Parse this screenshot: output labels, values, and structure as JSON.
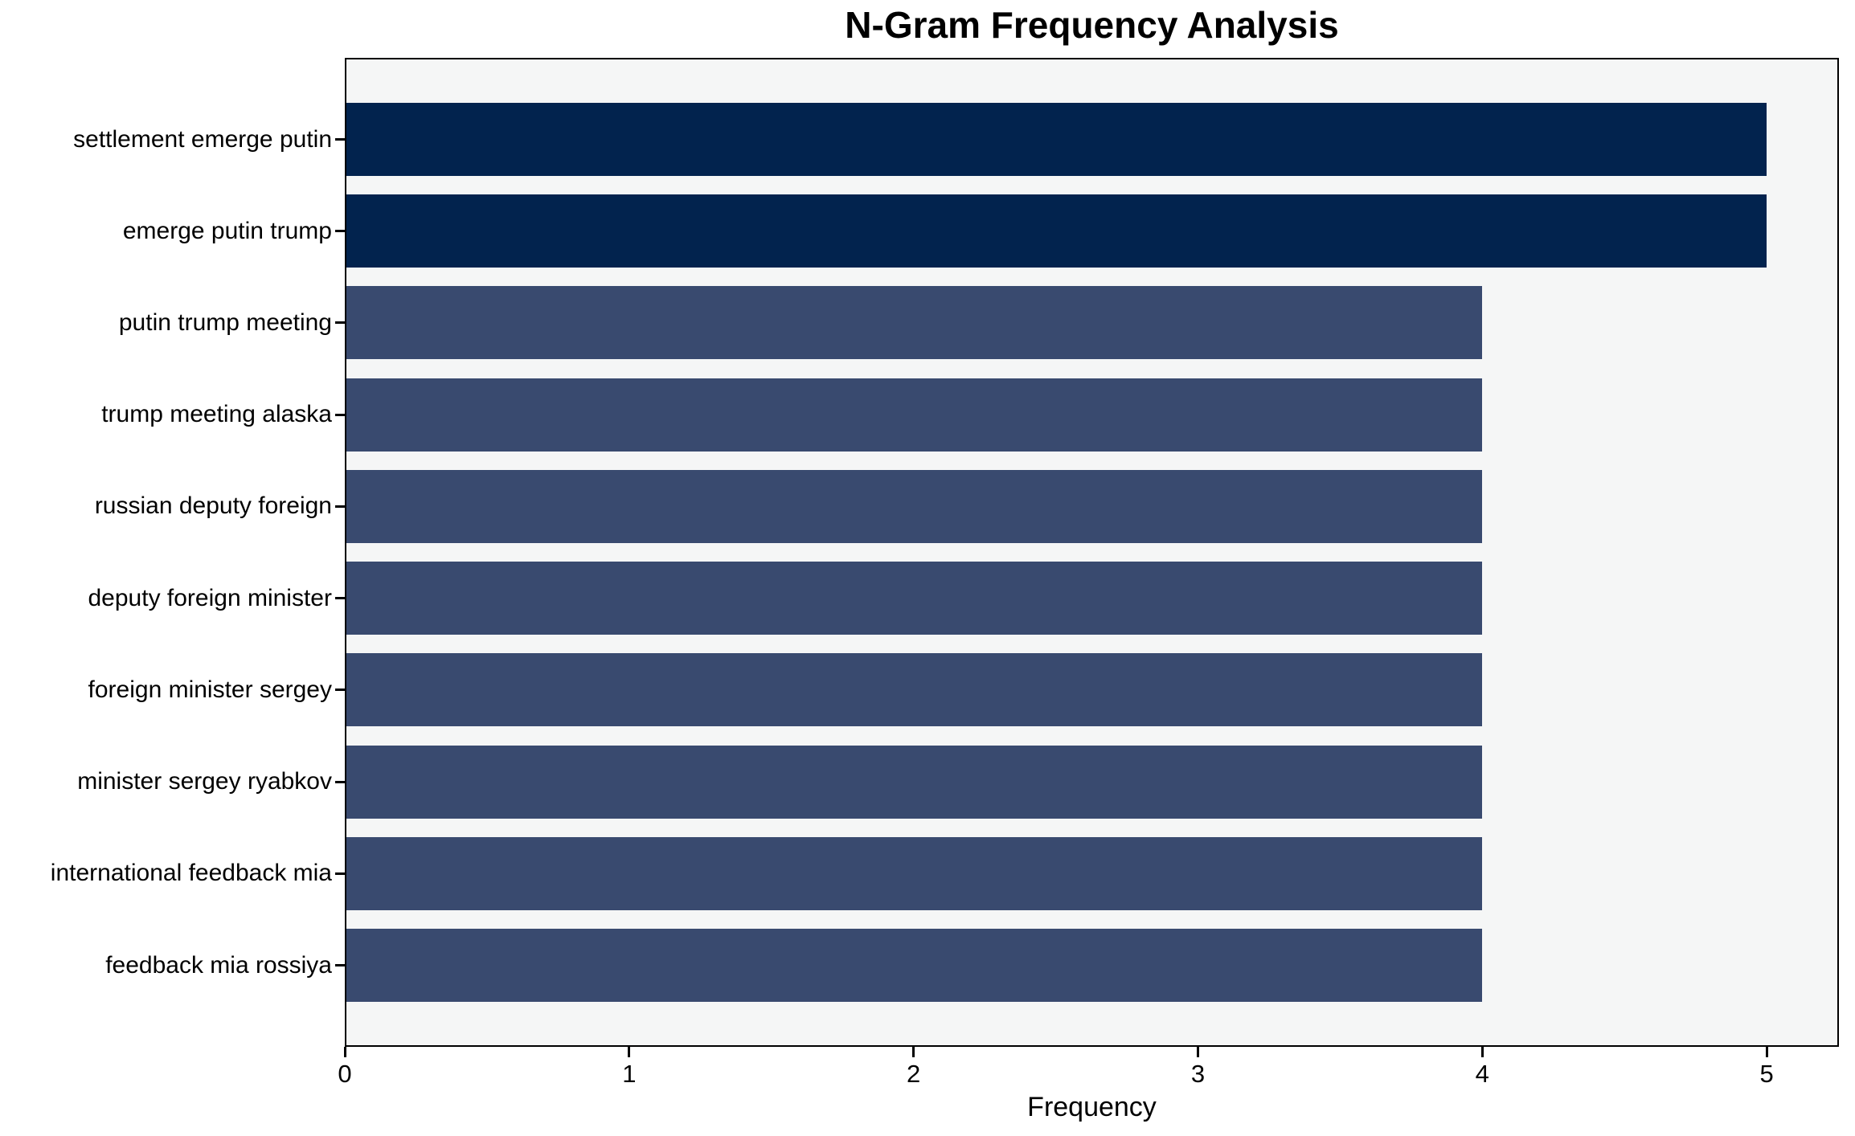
{
  "chart_data": {
    "type": "bar",
    "orientation": "horizontal",
    "title": "N-Gram Frequency Analysis",
    "xlabel": "Frequency",
    "ylabel": "",
    "categories": [
      "settlement emerge putin",
      "emerge putin trump",
      "putin trump meeting",
      "trump meeting alaska",
      "russian deputy foreign",
      "deputy foreign minister",
      "foreign minister sergey",
      "minister sergey ryabkov",
      "international feedback mia",
      "feedback mia rossiya"
    ],
    "values": [
      5,
      5,
      4,
      4,
      4,
      4,
      4,
      4,
      4,
      4
    ],
    "bar_colors": [
      "#02234e",
      "#02234e",
      "#394a6f",
      "#394a6f",
      "#394a6f",
      "#394a6f",
      "#394a6f",
      "#394a6f",
      "#394a6f",
      "#394a6f"
    ],
    "xticks": [
      0,
      1,
      2,
      3,
      4,
      5
    ],
    "xlim": [
      0,
      5.254
    ],
    "grid": false,
    "legend": "none",
    "colors": {
      "bar_highlight": "#02234e",
      "bar_normal": "#394a6f",
      "plot_background": "#f5f6f6",
      "figure_background": "#ffffff",
      "spine": "#000000",
      "text": "#000000"
    }
  }
}
